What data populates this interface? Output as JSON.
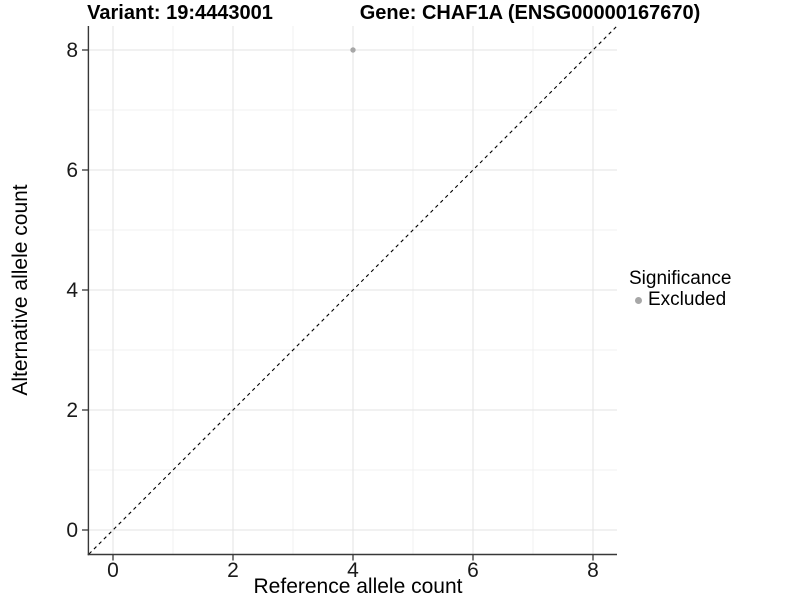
{
  "figure": {
    "title_left": "Variant: 19:4443001",
    "title_right": "Gene: CHAF1A (ENSG00000167670)"
  },
  "legend": {
    "title": "Significance",
    "items": [
      {
        "label": "Excluded",
        "color": "#A7A7A7"
      }
    ]
  },
  "chart_data": {
    "type": "scatter",
    "title": "Variant: 19:4443001    Gene: CHAF1A (ENSG00000167670)",
    "xlabel": "Reference allele count",
    "ylabel": "Alternative allele count",
    "xlim": [
      -0.4,
      8.4
    ],
    "ylim": [
      -0.4,
      8.4
    ],
    "x_ticks": [
      0,
      2,
      4,
      6,
      8
    ],
    "y_ticks": [
      0,
      2,
      4,
      6,
      8
    ],
    "x_minor_gridlines": [
      1,
      3,
      5,
      7
    ],
    "y_minor_gridlines": [
      1,
      3,
      5,
      7
    ],
    "grid": "on",
    "legend_position": "right",
    "series": [
      {
        "name": "Excluded",
        "color": "#A7A7A7",
        "points": [
          [
            4,
            8
          ]
        ]
      }
    ],
    "identity_line": {
      "style": "dashed",
      "color": "#000000",
      "from": [
        -0.4,
        -0.4
      ],
      "to": [
        8.4,
        8.4
      ]
    },
    "colors": {
      "grid_major": "#E3E3E3",
      "grid_minor": "#F1F1F1",
      "axis_line": "#383838",
      "tick_text": "#1A1A1A",
      "background": "#FFFFFF"
    }
  }
}
